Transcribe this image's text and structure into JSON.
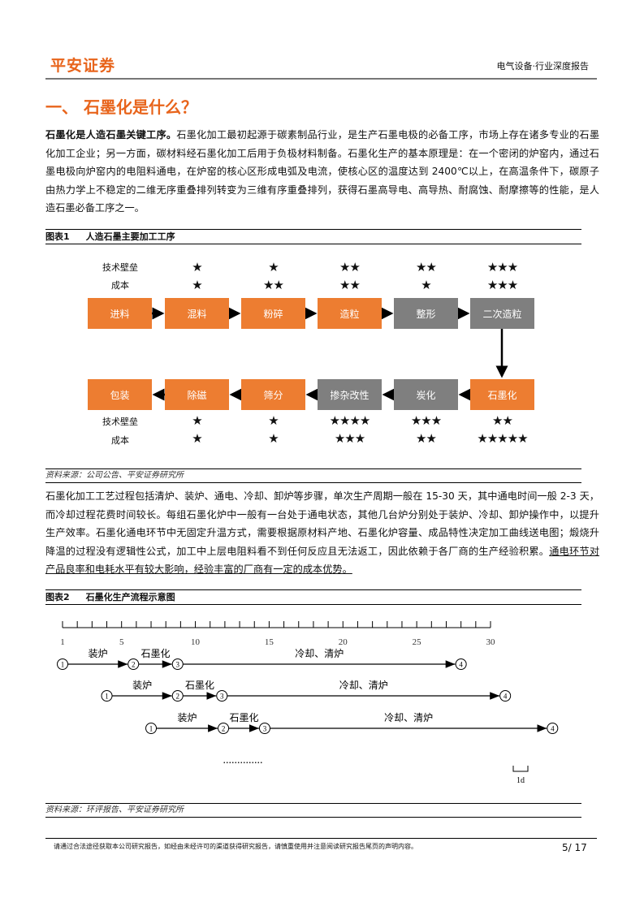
{
  "header": {
    "logo": "平安证券",
    "report_type": "电气设备·行业深度报告"
  },
  "section_title": "一、  石墨化是什么？",
  "para1": {
    "lead": "石墨化是人造石墨关键工序。",
    "text": "石墨化加工最初起源于碳素制品行业，是生产石墨电极的必备工序，市场上存在诸多专业的石墨化加工企业；另一方面，碳材料经石墨化加工后用于负极材料制备。石墨化生产的基本原理是：在一个密闭的炉窑内，通过石墨电极向炉窑内的电阻料通电，在炉窑的核心区形成电弧及电流，使核心区的温度达到 2400℃以上，在高温条件下，碳原子由热力学上不稳定的二维无序重叠排列转变为三维有序重叠排列，获得石墨高导电、高导热、耐腐蚀、耐摩擦等的性能，是人造石墨必备工序之一。"
  },
  "figure1": {
    "label": "图表1",
    "title": "人造石墨主要加工工序",
    "row_labels": {
      "barrier": "技术壁垒",
      "cost": "成本"
    },
    "top_row": [
      {
        "name": "进料",
        "color": "#ed7d31",
        "barrier": "★",
        "cost": "★"
      },
      {
        "name": "混料",
        "color": "#ed7d31",
        "barrier": "★",
        "cost": "★★"
      },
      {
        "name": "粉碎",
        "color": "#ed7d31",
        "barrier": "★★",
        "cost": "★★"
      },
      {
        "name": "造粒",
        "color": "#ed7d31",
        "barrier": "★★",
        "cost": "★"
      },
      {
        "name": "整形",
        "color": "#7f7f7f",
        "barrier": "★★★",
        "cost": "★★★"
      },
      {
        "name": "二次造粒",
        "color": "#7f7f7f"
      }
    ],
    "bottom_row": [
      {
        "name": "包装",
        "color": "#ed7d31"
      },
      {
        "name": "除磁",
        "color": "#ed7d31",
        "barrier": "★",
        "cost": "★"
      },
      {
        "name": "筛分",
        "color": "#ed7d31",
        "barrier": "★",
        "cost": "★"
      },
      {
        "name": "掺杂改性",
        "color": "#7f7f7f",
        "barrier": "★★★★",
        "cost": "★★★"
      },
      {
        "name": "炭化",
        "color": "#7f7f7f",
        "barrier": "★★★",
        "cost": "★★"
      },
      {
        "name": "石墨化",
        "color": "#ed7d31",
        "barrier": "★★",
        "cost": "★★★★★"
      }
    ],
    "source": "资料来源：公司公告、平安证券研究所"
  },
  "para2": {
    "text": "石墨化加工工艺过程包括清炉、装炉、通电、冷却、卸炉等步骤，单次生产周期一般在 15-30 天，其中通电时间一般 2-3 天，而冷却过程花费时间较长。每组石墨化炉中一般有一台处于通电状态，其他几台炉分别处于装炉、冷却、卸炉操作中，以提升生产效率。石墨化通电环节中无固定升温方式，需要根据原材料产地、石墨化炉容量、成品特性决定加工曲线送电图；煅烧升降温的过程没有逻辑性公式，加工中上层电阻料看不到任何反应且无法返工，因此依赖于各厂商的生产经验积累。",
    "underlined": "通电环节对产品良率和电耗水平有较大影响，经验丰富的厂商有一定的成本优势。"
  },
  "figure2": {
    "label": "图表2",
    "title": "石墨化生产流程示意图",
    "axis_ticks": [
      "1",
      "5",
      "10",
      "15",
      "20",
      "25",
      "30"
    ],
    "stage_labels": [
      "装炉",
      "石墨化",
      "冷却、清炉"
    ],
    "node_labels": [
      "1",
      "2",
      "3",
      "4"
    ],
    "rows": [
      {
        "nodes_day": [
          1,
          5.8,
          8.8,
          28
        ]
      },
      {
        "nodes_day": [
          4,
          8.8,
          11.8,
          31
        ]
      },
      {
        "nodes_day": [
          7,
          11.9,
          14.7,
          34.2
        ]
      }
    ],
    "ellipsis": "..............",
    "scale_label": "1d",
    "source": "资料来源：环评报告、平安证券研究所"
  },
  "footer": {
    "disclaimer": "请通过合法途径获取本公司研究报告，如经由未经许可的渠道获得研究报告，请慎重使用并注意阅读研究报告尾页的声明内容。",
    "page": "5/ 17"
  }
}
